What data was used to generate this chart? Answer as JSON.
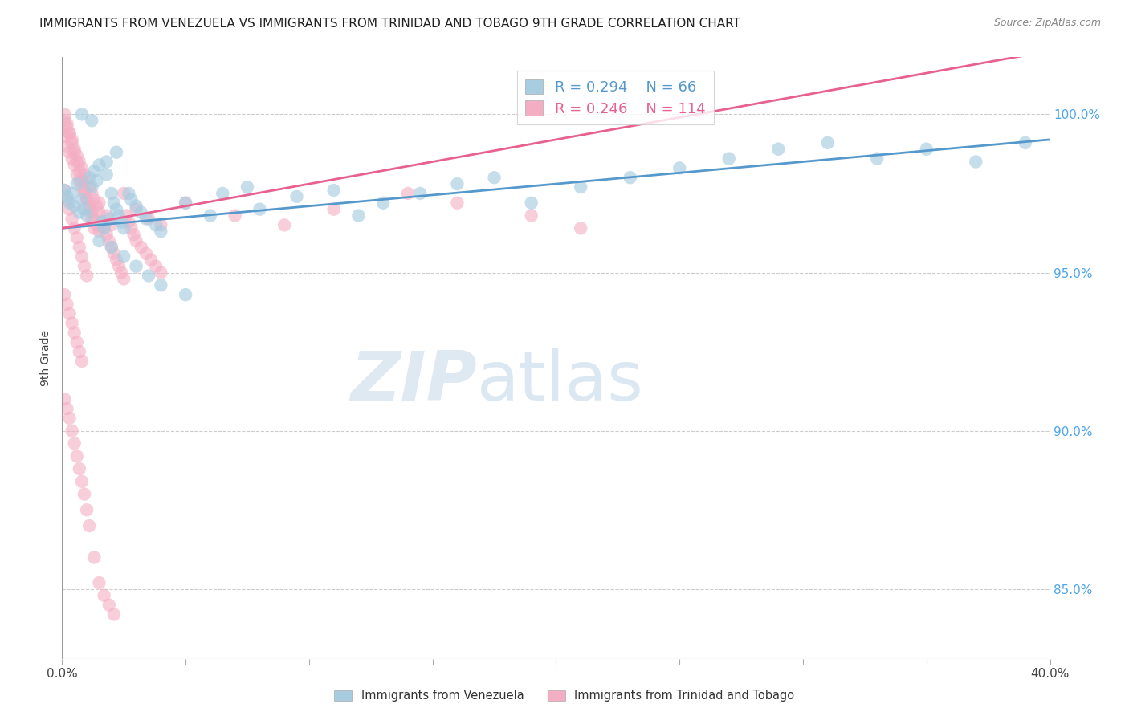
{
  "title": "IMMIGRANTS FROM VENEZUELA VS IMMIGRANTS FROM TRINIDAD AND TOBAGO 9TH GRADE CORRELATION CHART",
  "source": "Source: ZipAtlas.com",
  "ylabel": "9th Grade",
  "yaxis_labels": [
    "85.0%",
    "90.0%",
    "95.0%",
    "100.0%"
  ],
  "yaxis_values": [
    0.85,
    0.9,
    0.95,
    1.0
  ],
  "xlim": [
    0.0,
    0.4
  ],
  "ylim": [
    0.828,
    1.018
  ],
  "legend_blue_r": "R = 0.294",
  "legend_blue_n": "N = 66",
  "legend_pink_r": "R = 0.246",
  "legend_pink_n": "N = 114",
  "legend_blue_label": "Immigrants from Venezuela",
  "legend_pink_label": "Immigrants from Trinidad and Tobago",
  "blue_color": "#a8cce0",
  "pink_color": "#f4aec4",
  "blue_line_color": "#5599cc",
  "pink_line_color": "#e86090",
  "background_color": "#ffffff",
  "blue_line_x0": 0.0,
  "blue_line_y0": 0.964,
  "blue_line_x1": 0.4,
  "blue_line_y1": 0.992,
  "pink_line_x0": 0.0,
  "pink_line_y0": 0.964,
  "pink_line_x1": 0.4,
  "pink_line_y1": 1.02,
  "blue_scatter_x": [
    0.001,
    0.002,
    0.003,
    0.004,
    0.005,
    0.006,
    0.007,
    0.008,
    0.009,
    0.01,
    0.011,
    0.012,
    0.013,
    0.014,
    0.015,
    0.016,
    0.017,
    0.018,
    0.019,
    0.02,
    0.021,
    0.022,
    0.023,
    0.024,
    0.025,
    0.027,
    0.028,
    0.03,
    0.032,
    0.034,
    0.038,
    0.04,
    0.05,
    0.06,
    0.065,
    0.075,
    0.08,
    0.095,
    0.11,
    0.12,
    0.13,
    0.145,
    0.16,
    0.175,
    0.19,
    0.21,
    0.23,
    0.25,
    0.27,
    0.29,
    0.31,
    0.33,
    0.35,
    0.37,
    0.39,
    0.015,
    0.02,
    0.025,
    0.03,
    0.035,
    0.04,
    0.05,
    0.018,
    0.022,
    0.008,
    0.012
  ],
  "blue_scatter_y": [
    0.976,
    0.974,
    0.972,
    0.975,
    0.971,
    0.978,
    0.969,
    0.973,
    0.97,
    0.968,
    0.98,
    0.977,
    0.982,
    0.979,
    0.984,
    0.966,
    0.964,
    0.981,
    0.967,
    0.975,
    0.972,
    0.97,
    0.968,
    0.966,
    0.964,
    0.975,
    0.973,
    0.971,
    0.969,
    0.967,
    0.965,
    0.963,
    0.972,
    0.968,
    0.975,
    0.977,
    0.97,
    0.974,
    0.976,
    0.968,
    0.972,
    0.975,
    0.978,
    0.98,
    0.972,
    0.977,
    0.98,
    0.983,
    0.986,
    0.989,
    0.991,
    0.986,
    0.989,
    0.985,
    0.991,
    0.96,
    0.958,
    0.955,
    0.952,
    0.949,
    0.946,
    0.943,
    0.985,
    0.988,
    1.0,
    0.998
  ],
  "pink_scatter_x": [
    0.001,
    0.001,
    0.002,
    0.002,
    0.003,
    0.003,
    0.004,
    0.004,
    0.005,
    0.005,
    0.006,
    0.006,
    0.007,
    0.007,
    0.008,
    0.008,
    0.009,
    0.009,
    0.01,
    0.01,
    0.011,
    0.011,
    0.012,
    0.012,
    0.013,
    0.013,
    0.014,
    0.014,
    0.015,
    0.015,
    0.016,
    0.017,
    0.018,
    0.019,
    0.02,
    0.021,
    0.022,
    0.023,
    0.024,
    0.025,
    0.026,
    0.027,
    0.028,
    0.029,
    0.03,
    0.032,
    0.034,
    0.036,
    0.038,
    0.04,
    0.001,
    0.002,
    0.003,
    0.004,
    0.005,
    0.006,
    0.007,
    0.008,
    0.009,
    0.01,
    0.011,
    0.012,
    0.013,
    0.015,
    0.018,
    0.02,
    0.025,
    0.03,
    0.035,
    0.04,
    0.001,
    0.002,
    0.003,
    0.004,
    0.005,
    0.006,
    0.007,
    0.008,
    0.009,
    0.01,
    0.05,
    0.07,
    0.09,
    0.11,
    0.14,
    0.16,
    0.19,
    0.21,
    0.001,
    0.002,
    0.003,
    0.004,
    0.005,
    0.006,
    0.007,
    0.008,
    0.001,
    0.002,
    0.003,
    0.004,
    0.005,
    0.006,
    0.007,
    0.008,
    0.009,
    0.01,
    0.011,
    0.013,
    0.015,
    0.017,
    0.019,
    0.021
  ],
  "pink_scatter_y": [
    0.998,
    0.993,
    0.996,
    0.99,
    0.994,
    0.988,
    0.992,
    0.986,
    0.989,
    0.984,
    0.987,
    0.981,
    0.985,
    0.979,
    0.983,
    0.977,
    0.981,
    0.975,
    0.979,
    0.973,
    0.977,
    0.971,
    0.975,
    0.969,
    0.973,
    0.967,
    0.971,
    0.965,
    0.969,
    0.963,
    0.966,
    0.964,
    0.962,
    0.96,
    0.958,
    0.956,
    0.954,
    0.952,
    0.95,
    0.948,
    0.968,
    0.966,
    0.964,
    0.962,
    0.96,
    0.958,
    0.956,
    0.954,
    0.952,
    0.95,
    1.0,
    0.997,
    0.994,
    0.991,
    0.988,
    0.985,
    0.982,
    0.979,
    0.976,
    0.973,
    0.97,
    0.967,
    0.964,
    0.972,
    0.968,
    0.965,
    0.975,
    0.97,
    0.967,
    0.965,
    0.976,
    0.973,
    0.97,
    0.967,
    0.964,
    0.961,
    0.958,
    0.955,
    0.952,
    0.949,
    0.972,
    0.968,
    0.965,
    0.97,
    0.975,
    0.972,
    0.968,
    0.964,
    0.943,
    0.94,
    0.937,
    0.934,
    0.931,
    0.928,
    0.925,
    0.922,
    0.91,
    0.907,
    0.904,
    0.9,
    0.896,
    0.892,
    0.888,
    0.884,
    0.88,
    0.875,
    0.87,
    0.86,
    0.852,
    0.848,
    0.845,
    0.842
  ]
}
